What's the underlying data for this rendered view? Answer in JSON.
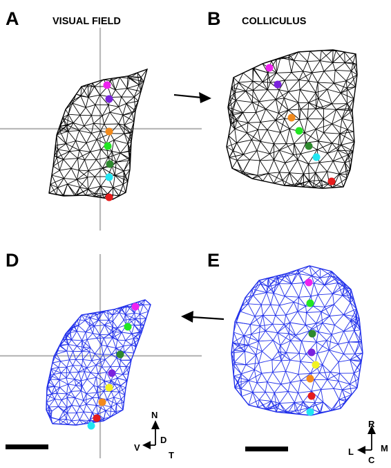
{
  "panels": {
    "A": {
      "letter": "A",
      "title": "VISUAL FIELD"
    },
    "B": {
      "letter": "B",
      "title": "COLLICULUS"
    },
    "D": {
      "letter": "D"
    },
    "E": {
      "letter": "E"
    }
  },
  "orientation_field": {
    "up": "N",
    "left": "V",
    "right": "D",
    "down": "T"
  },
  "orientation_colliculus": {
    "up": "R",
    "left": "L",
    "right": "M",
    "down": "C"
  },
  "colors": {
    "mesh_black": "#000000",
    "mesh_blue": "#1f2eea",
    "crosshair": "#b9b9b9",
    "magenta": "#ee22ee",
    "purple": "#7a22dd",
    "orange": "#f28a1c",
    "green": "#22e622",
    "dark_green": "#2e8a2e",
    "cyan": "#22e6f2",
    "red": "#e61c1c",
    "yellow": "#f2f222"
  }
}
